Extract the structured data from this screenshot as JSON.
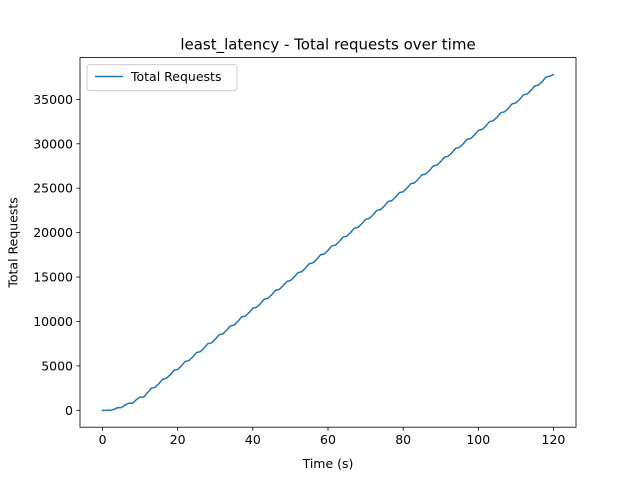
{
  "chart_data": {
    "type": "line",
    "title": "least_latency - Total requests over time",
    "xlabel": "Time (s)",
    "ylabel": "Total Requests",
    "xlim": [
      -6,
      126
    ],
    "ylim": [
      -1900,
      39700
    ],
    "xticks": [
      0,
      20,
      40,
      60,
      80,
      100,
      120
    ],
    "yticks": [
      0,
      5000,
      10000,
      15000,
      20000,
      25000,
      30000,
      35000
    ],
    "grid": false,
    "legend_position": "upper-left",
    "series": [
      {
        "name": "Total Requests",
        "color": "#1f77b4",
        "x": [
          0,
          2,
          3,
          4,
          5,
          6,
          7,
          8,
          9,
          10,
          11,
          12,
          13,
          14,
          15,
          16,
          17,
          18,
          19,
          20,
          21,
          22,
          23,
          24,
          25,
          26,
          27,
          28,
          29,
          30,
          31,
          32,
          33,
          34,
          35,
          36,
          37,
          38,
          39,
          40,
          41,
          42,
          43,
          44,
          45,
          46,
          47,
          48,
          49,
          50,
          51,
          52,
          53,
          54,
          55,
          56,
          57,
          58,
          59,
          60,
          61,
          62,
          63,
          64,
          65,
          66,
          67,
          68,
          69,
          70,
          71,
          72,
          73,
          74,
          75,
          76,
          77,
          78,
          79,
          80,
          81,
          82,
          83,
          84,
          85,
          86,
          87,
          88,
          89,
          90,
          91,
          92,
          93,
          94,
          95,
          96,
          97,
          98,
          99,
          100,
          101,
          102,
          103,
          104,
          105,
          106,
          107,
          108,
          109,
          110,
          111,
          112,
          113,
          114,
          115,
          116,
          117,
          118,
          119,
          120
        ],
        "y": [
          0,
          0,
          100,
          300,
          300,
          600,
          800,
          800,
          1200,
          1500,
          1500,
          2000,
          2500,
          2600,
          3000,
          3500,
          3600,
          4000,
          4500,
          4600,
          5000,
          5500,
          5600,
          6000,
          6500,
          6600,
          7000,
          7500,
          7600,
          8000,
          8500,
          8600,
          9000,
          9500,
          9600,
          10000,
          10500,
          10600,
          11000,
          11500,
          11600,
          12000,
          12500,
          12600,
          13000,
          13500,
          13600,
          14000,
          14500,
          14600,
          15000,
          15500,
          15600,
          16000,
          16500,
          16600,
          17000,
          17500,
          17600,
          18000,
          18500,
          18600,
          19000,
          19500,
          19600,
          20000,
          20500,
          20600,
          21000,
          21500,
          21600,
          22000,
          22500,
          22600,
          23000,
          23500,
          23600,
          24000,
          24500,
          24600,
          25000,
          25500,
          25600,
          26000,
          26500,
          26600,
          27000,
          27500,
          27600,
          28000,
          28500,
          28600,
          29000,
          29500,
          29600,
          30000,
          30500,
          30600,
          31000,
          31500,
          31600,
          32000,
          32500,
          32600,
          33000,
          33500,
          33600,
          34000,
          34500,
          34600,
          35000,
          35500,
          35600,
          36000,
          36500,
          36600,
          37000,
          37500,
          37600,
          37800
        ]
      }
    ]
  }
}
